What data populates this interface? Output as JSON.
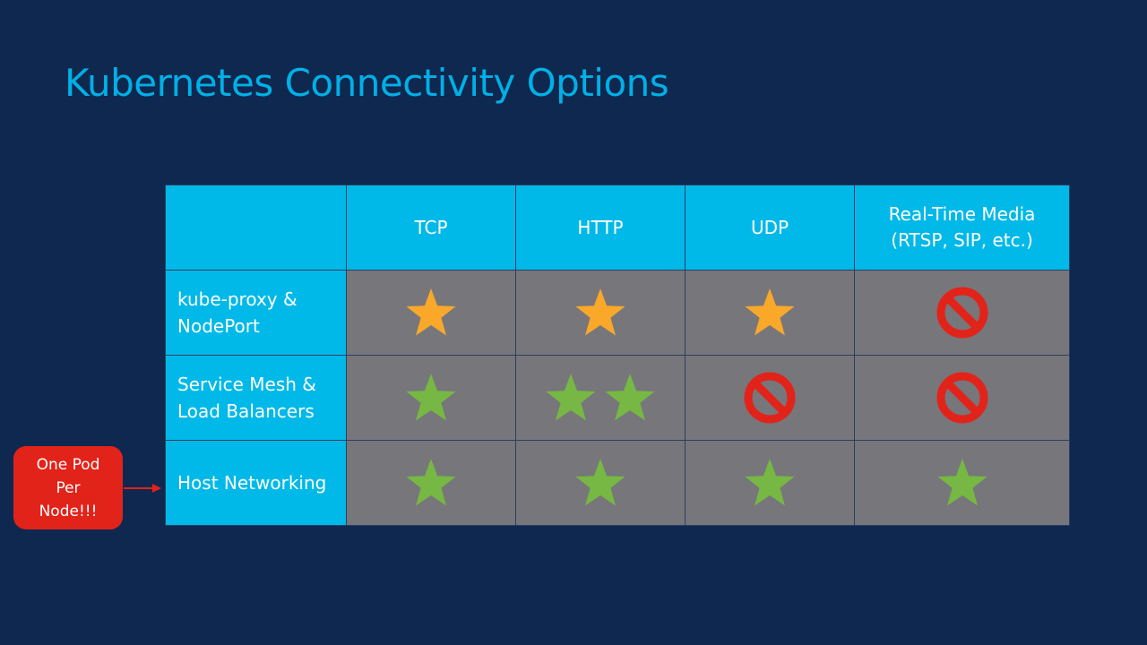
{
  "title": "Kubernetes Connectivity Options",
  "colors": {
    "background": "#0f2850",
    "accent": "#00b9e8",
    "cell": "#77767b",
    "star_orange": "#f9a82a",
    "star_green": "#76b843",
    "no": "#e2231a"
  },
  "table": {
    "headers": [
      "",
      "TCP",
      "HTTP",
      "UDP",
      "Real-Time Media\n(RTSP, SIP, etc.)"
    ],
    "rows": [
      {
        "label": "kube-proxy &\nNodePort",
        "cells": [
          [
            "star-orange"
          ],
          [
            "star-orange"
          ],
          [
            "star-orange"
          ],
          [
            "no-icon"
          ]
        ]
      },
      {
        "label": "Service Mesh &\nLoad Balancers",
        "cells": [
          [
            "star-green"
          ],
          [
            "star-green",
            "star-green"
          ],
          [
            "no-icon"
          ],
          [
            "no-icon"
          ]
        ]
      },
      {
        "label": "Host Networking",
        "cells": [
          [
            "star-green"
          ],
          [
            "star-green"
          ],
          [
            "star-green"
          ],
          [
            "star-green"
          ]
        ]
      }
    ]
  },
  "callout": {
    "text": "One Pod\nPer\nNode!!!"
  }
}
